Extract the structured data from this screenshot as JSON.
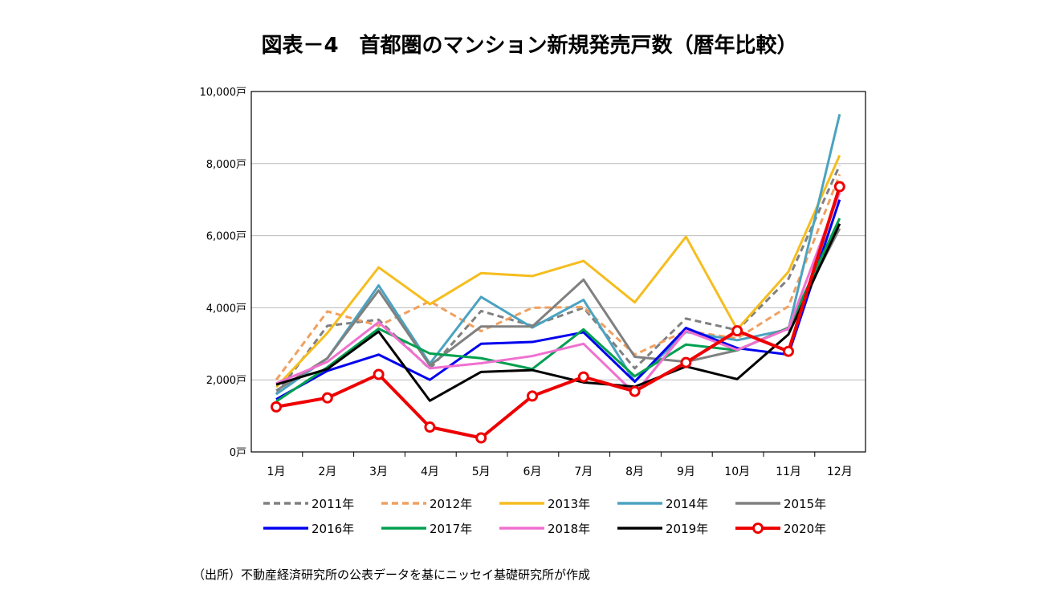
{
  "chart_data": {
    "type": "line",
    "title": "図表－4　首都圏のマンション新規発売戸数（暦年比較）",
    "source": "（出所）不動産経済研究所の公表データを基にニッセイ基礎研究所が作成",
    "categories": [
      "1月",
      "2月",
      "3月",
      "4月",
      "5月",
      "6月",
      "7月",
      "8月",
      "9月",
      "10月",
      "11月",
      "12月"
    ],
    "ylim": [
      0,
      10000
    ],
    "yticks": [
      "0戸",
      "2,000戸",
      "4,000戸",
      "6,000戸",
      "8,000戸",
      "10,000戸"
    ],
    "grid": true,
    "legend": "bottom",
    "series": [
      {
        "name": "2011年",
        "color": "#808080",
        "dash": true,
        "values": [
          1600,
          3500,
          3670,
          2300,
          3910,
          3500,
          4000,
          2320,
          3700,
          3380,
          4800,
          7950
        ]
      },
      {
        "name": "2012年",
        "color": "#f0a060",
        "dash": true,
        "values": [
          2000,
          3900,
          3500,
          4180,
          3350,
          4000,
          4020,
          2700,
          3360,
          3150,
          4040,
          7700
        ]
      },
      {
        "name": "2013年",
        "color": "#f5bd1f",
        "values": [
          1800,
          3300,
          5120,
          4100,
          4960,
          4880,
          5300,
          4150,
          5970,
          3400,
          5000,
          8230
        ]
      },
      {
        "name": "2014年",
        "color": "#4ba3c0",
        "values": [
          1600,
          2600,
          4620,
          2450,
          4300,
          3450,
          4220,
          1950,
          3330,
          3100,
          3400,
          9370
        ]
      },
      {
        "name": "2015年",
        "color": "#808080",
        "values": [
          1700,
          2600,
          4480,
          2400,
          3480,
          3480,
          4780,
          2640,
          2500,
          2820,
          3450,
          6200
        ]
      },
      {
        "name": "2016年",
        "color": "#0000ee",
        "values": [
          1460,
          2250,
          2700,
          2000,
          3000,
          3050,
          3320,
          1950,
          3440,
          2880,
          2700,
          7000
        ]
      },
      {
        "name": "2017年",
        "color": "#00a050",
        "values": [
          1400,
          2350,
          3420,
          2730,
          2600,
          2300,
          3400,
          2100,
          2980,
          2820,
          3440,
          6480
        ]
      },
      {
        "name": "2018年",
        "color": "#f070d0",
        "values": [
          1900,
          2500,
          3600,
          2320,
          2460,
          2660,
          3000,
          1620,
          3360,
          2830,
          3420,
          7200
        ]
      },
      {
        "name": "2019年",
        "color": "#000000",
        "values": [
          1870,
          2300,
          3340,
          1420,
          2220,
          2270,
          1930,
          1810,
          2370,
          2020,
          3260,
          6330
        ]
      },
      {
        "name": "2020年",
        "color": "#ee0000",
        "marker": true,
        "values": [
          1250,
          1500,
          2150,
          690,
          390,
          1550,
          2080,
          1680,
          2480,
          3360,
          2790,
          7360
        ]
      }
    ]
  }
}
